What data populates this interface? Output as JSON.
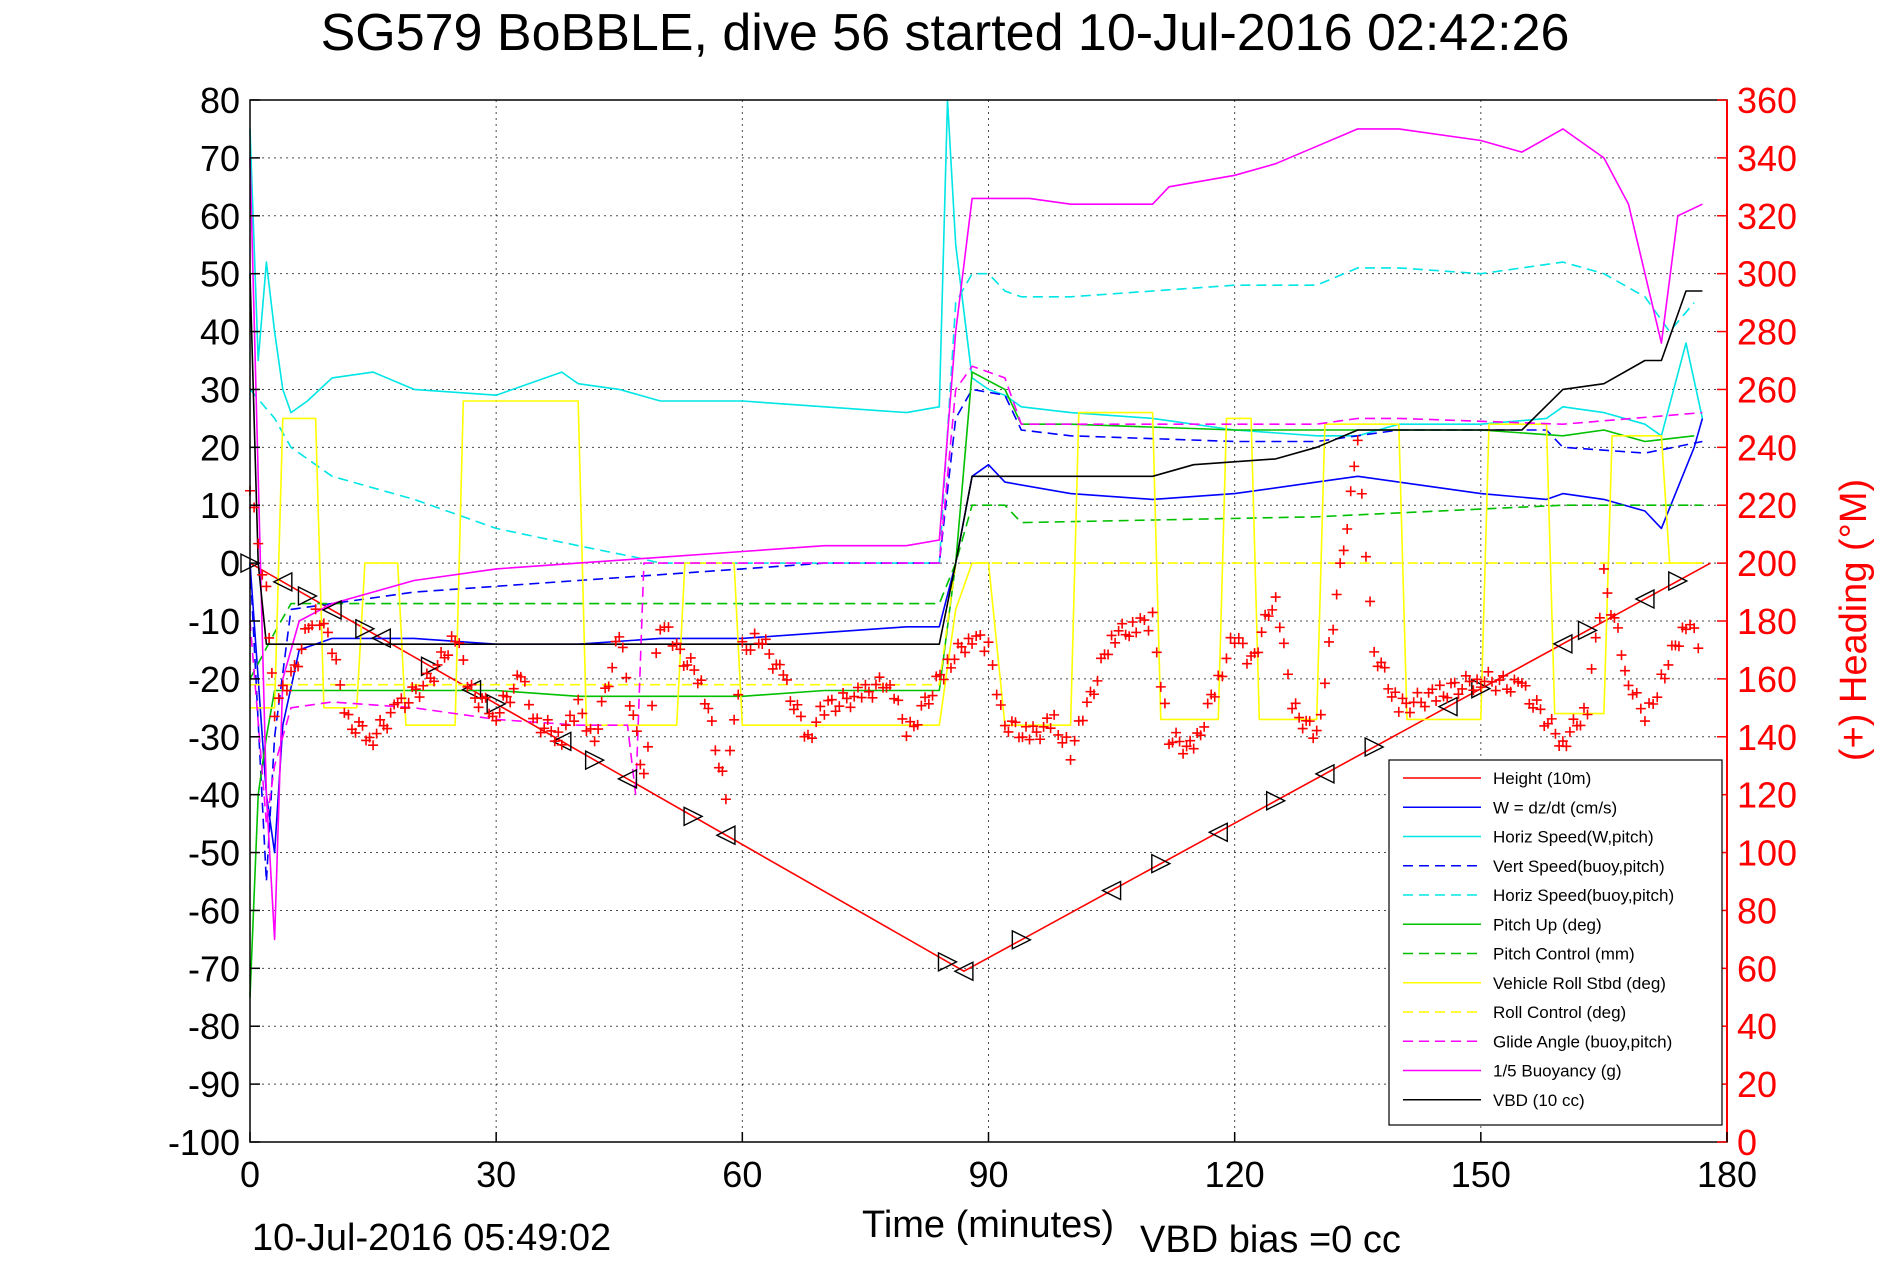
{
  "chart_data": {
    "type": "line",
    "title": "SG579 BoBBLE, dive 56 started 10-Jul-2016 02:42:26",
    "xlabel": "Time (minutes)",
    "ylabel_right": "(+) Heading (°M)",
    "footer_left": "10-Jul-2016 05:49:02",
    "footer_right": "VBD bias =0 cc",
    "xlim": [
      0,
      180
    ],
    "ylim": [
      -100,
      80
    ],
    "ylim_right": [
      0,
      360
    ],
    "xticks": [
      "0",
      "30",
      "60",
      "90",
      "120",
      "150",
      "180"
    ],
    "yticks": [
      "80",
      "70",
      "60",
      "50",
      "40",
      "30",
      "20",
      "10",
      "0",
      "-10",
      "-20",
      "-30",
      "-40",
      "-50",
      "-60",
      "-70",
      "-80",
      "-90",
      "-100"
    ],
    "yticks_right": [
      "360",
      "340",
      "320",
      "300",
      "280",
      "260",
      "240",
      "220",
      "200",
      "180",
      "160",
      "140",
      "120",
      "100",
      "80",
      "60",
      "40",
      "20",
      "0"
    ],
    "grid": true,
    "legend_position": "bottom-right",
    "colors": {
      "axis_right": "#ff0000"
    },
    "series": [
      {
        "name": "Height (10m)",
        "color": "#ff0000",
        "style": "solid",
        "x": [
          0,
          87,
          178
        ],
        "y": [
          0,
          -70.5,
          0
        ]
      },
      {
        "name": "W = dz/dt (cm/s)",
        "color": "#0000ff",
        "style": "solid",
        "x": [
          0,
          2,
          3,
          4,
          6,
          10,
          15,
          20,
          30,
          40,
          50,
          60,
          70,
          80,
          84,
          86,
          88,
          90,
          92,
          100,
          110,
          120,
          130,
          135,
          140,
          150,
          158,
          160,
          165,
          170,
          172,
          176,
          177
        ],
        "y": [
          0,
          -40,
          -50,
          -28,
          -15,
          -13,
          -13,
          -13,
          -14,
          -14,
          -13,
          -13,
          -12,
          -11,
          -11,
          0,
          15,
          17,
          14,
          12,
          11,
          12,
          14,
          15,
          14,
          12,
          11,
          12,
          11,
          9,
          6,
          20,
          25
        ]
      },
      {
        "name": "Horiz Speed(W,pitch)",
        "color": "#00e5e5",
        "style": "solid",
        "x": [
          0,
          1,
          2,
          3,
          4,
          5,
          7,
          10,
          15,
          20,
          30,
          38,
          40,
          45,
          50,
          60,
          70,
          80,
          84,
          85,
          86,
          88,
          90,
          92,
          94,
          100,
          110,
          120,
          130,
          135,
          140,
          150,
          158,
          160,
          165,
          170,
          172,
          175,
          177
        ],
        "y": [
          75,
          35,
          52,
          40,
          30,
          26,
          28,
          32,
          33,
          30,
          29,
          33,
          31,
          30,
          28,
          28,
          27,
          26,
          27,
          80,
          55,
          32,
          30,
          29,
          27,
          26,
          25,
          23,
          22,
          22,
          24,
          24,
          25,
          27,
          26,
          24,
          22,
          38,
          25
        ]
      },
      {
        "name": "Vert Speed(buoy,pitch)",
        "color": "#0000ff",
        "style": "dashed",
        "x": [
          0,
          2,
          3,
          5,
          10,
          20,
          30,
          40,
          50,
          60,
          70,
          80,
          84,
          86,
          88,
          92,
          94,
          100,
          120,
          130,
          140,
          150,
          158,
          160,
          170,
          177
        ],
        "y": [
          0,
          -55,
          -30,
          -8,
          -7,
          -5,
          -4,
          -3,
          -2,
          -1,
          0,
          0,
          0,
          25,
          30,
          29,
          23,
          22,
          21,
          21,
          23,
          23,
          23,
          20,
          19,
          21
        ]
      },
      {
        "name": "Horiz Speed(buoy,pitch)",
        "color": "#00e5e5",
        "style": "dashed",
        "x": [
          0,
          3,
          5,
          10,
          20,
          30,
          40,
          47,
          50,
          84,
          86,
          88,
          90,
          92,
          94,
          100,
          110,
          120,
          130,
          135,
          140,
          150,
          160,
          165,
          170,
          173,
          176
        ],
        "y": [
          30,
          25,
          20,
          15,
          11,
          6,
          3,
          1,
          0,
          0,
          45,
          50,
          50,
          47,
          46,
          46,
          47,
          48,
          48,
          51,
          51,
          50,
          52,
          50,
          46,
          40,
          45
        ]
      },
      {
        "name": "Pitch Up (deg)",
        "color": "#00c000",
        "style": "solid",
        "x": [
          0,
          1,
          2,
          3,
          5,
          10,
          20,
          30,
          40,
          50,
          60,
          70,
          80,
          84,
          86,
          88,
          92,
          94,
          100,
          120,
          130,
          140,
          150,
          160,
          165,
          170,
          176
        ],
        "y": [
          -75,
          -40,
          -30,
          -22,
          -22,
          -22,
          -22,
          -22,
          -23,
          -23,
          -23,
          -22,
          -22,
          -22,
          0,
          33,
          30,
          24,
          24,
          23,
          23,
          23,
          23,
          22,
          23,
          21,
          22
        ]
      },
      {
        "name": "Pitch Control (mm)",
        "color": "#00c000",
        "style": "dashed",
        "x": [
          0,
          3,
          5,
          10,
          30,
          60,
          84,
          86,
          88,
          92,
          94,
          130,
          160,
          177
        ],
        "y": [
          -20,
          -12,
          -7,
          -7,
          -7,
          -7,
          -7,
          0,
          10,
          10,
          7,
          8,
          10,
          10
        ]
      },
      {
        "name": "Vehicle Roll Stbd (deg)",
        "color": "#ffff00",
        "style": "solid",
        "x": [
          0,
          3,
          4,
          8,
          9,
          13,
          14,
          18,
          19,
          25,
          26,
          40,
          41,
          52,
          53,
          59,
          60,
          84,
          86,
          88,
          90,
          92,
          94,
          100,
          101,
          110,
          111,
          118,
          119,
          122,
          123,
          130,
          131,
          140,
          141,
          150,
          151,
          158,
          159,
          165,
          166,
          172,
          173,
          177
        ],
        "y": [
          -25,
          -25,
          25,
          25,
          -25,
          -25,
          0,
          0,
          -28,
          -28,
          28,
          28,
          -28,
          -28,
          0,
          0,
          -28,
          -28,
          -8,
          0,
          0,
          -28,
          -28,
          -28,
          26,
          26,
          -27,
          -27,
          25,
          25,
          -27,
          -27,
          24,
          24,
          -27,
          -27,
          24,
          24,
          -26,
          -26,
          22,
          22,
          0,
          0
        ]
      },
      {
        "name": "Roll Control (deg)",
        "color": "#ffff00",
        "style": "dashed",
        "x": [
          0,
          20,
          40,
          60,
          84,
          86,
          94,
          130,
          160,
          177
        ],
        "y": [
          -21,
          -21,
          -21,
          -21,
          -21,
          0,
          0,
          0,
          0,
          0
        ]
      },
      {
        "name": "Glide Angle (buoy,pitch)",
        "color": "#ff00ff",
        "style": "dashed",
        "x": [
          0,
          2,
          3,
          5,
          10,
          20,
          30,
          40,
          46,
          47,
          48,
          84,
          86,
          88,
          92,
          94,
          100,
          120,
          130,
          135,
          140,
          160,
          177
        ],
        "y": [
          -10,
          -45,
          -35,
          -25,
          -24,
          -25,
          -27,
          -28,
          -28,
          -40,
          0,
          0,
          30,
          34,
          32,
          24,
          24,
          24,
          24,
          25,
          25,
          24,
          26
        ]
      },
      {
        "name": "1/5 Buoyancy (g)",
        "color": "#ff00ff",
        "style": "solid",
        "x": [
          0,
          2,
          3,
          4,
          6,
          10,
          20,
          30,
          40,
          50,
          60,
          70,
          80,
          84,
          86,
          88,
          95,
          100,
          110,
          112,
          120,
          125,
          130,
          135,
          140,
          150,
          155,
          160,
          162,
          165,
          168,
          172,
          174,
          177
        ],
        "y": [
          70,
          -40,
          -65,
          -20,
          -10,
          -7,
          -3,
          -1,
          0,
          1,
          2,
          3,
          3,
          4,
          40,
          63,
          63,
          62,
          62,
          65,
          67,
          69,
          72,
          75,
          75,
          73,
          71,
          75,
          73,
          70,
          62,
          38,
          60,
          62
        ]
      },
      {
        "name": "VBD (10 cc)",
        "color": "#000000",
        "style": "solid",
        "x": [
          0,
          1,
          2,
          50,
          84,
          86,
          88,
          95,
          110,
          115,
          125,
          130,
          135,
          140,
          155,
          160,
          165,
          170,
          172,
          175,
          177
        ],
        "y": [
          50,
          0,
          -14,
          -14,
          -14,
          0,
          15,
          15,
          15,
          17,
          18,
          20,
          23,
          23,
          23,
          30,
          31,
          35,
          35,
          47,
          47
        ]
      }
    ],
    "heading_series": {
      "axis": "right",
      "color": "#ff0000",
      "marker": "+",
      "x": [
        0,
        2,
        3,
        5,
        8,
        10,
        12,
        15,
        18,
        22,
        25,
        27,
        30,
        33,
        35,
        38,
        40,
        42,
        45,
        48,
        50,
        52,
        55,
        58,
        60,
        62,
        65,
        68,
        70,
        75,
        78,
        80,
        85,
        88,
        90,
        92,
        95,
        98,
        100,
        102,
        105,
        108,
        110,
        112,
        115,
        118,
        120,
        122,
        125,
        127,
        130,
        132,
        135,
        137,
        140,
        145,
        150,
        155,
        160,
        163,
        165,
        168,
        170,
        172,
        175,
        177
      ],
      "y": [
        225,
        190,
        150,
        160,
        185,
        170,
        145,
        140,
        150,
        160,
        175,
        155,
        148,
        160,
        145,
        140,
        150,
        140,
        175,
        125,
        180,
        170,
        160,
        120,
        170,
        175,
        160,
        140,
        150,
        155,
        160,
        140,
        165,
        175,
        170,
        145,
        140,
        145,
        135,
        150,
        175,
        178,
        180,
        140,
        135,
        160,
        175,
        165,
        190,
        150,
        140,
        180,
        240,
        170,
        150,
        155,
        160,
        157,
        138,
        150,
        195,
        160,
        145,
        160,
        180,
        170
      ]
    },
    "height_markers": {
      "color": "#000000",
      "x": [
        0,
        4,
        7,
        10,
        14,
        16,
        22,
        27,
        30,
        38,
        42,
        46,
        54,
        58,
        85,
        87,
        94,
        105,
        111,
        118,
        125,
        131,
        137,
        146,
        150,
        160,
        163,
        170,
        174
      ]
    }
  }
}
